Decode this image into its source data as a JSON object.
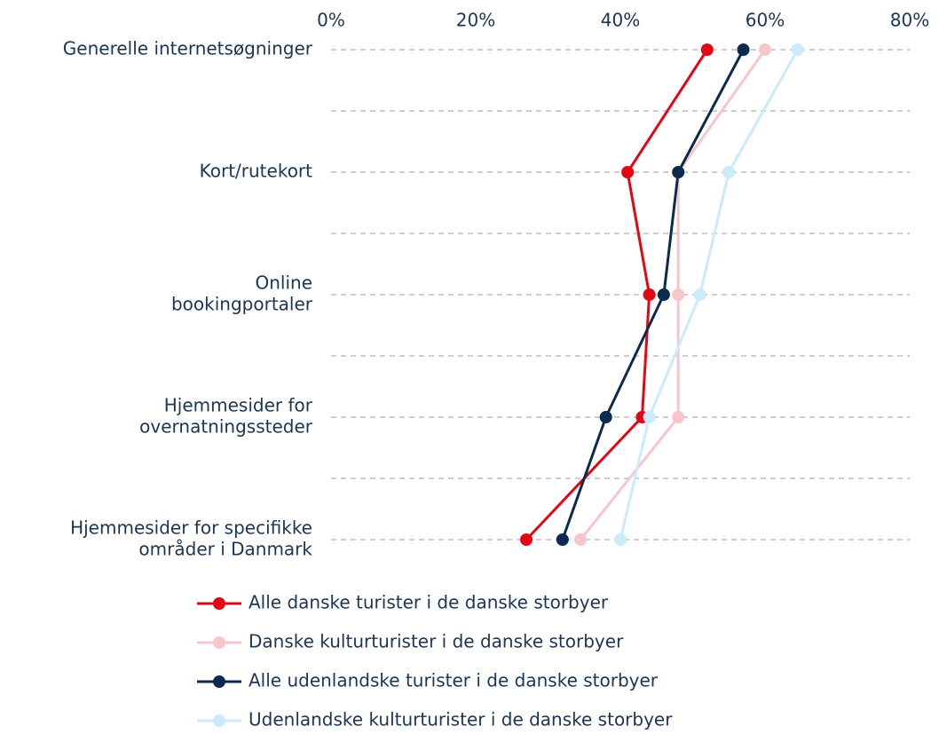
{
  "chart_data": {
    "type": "line",
    "orientation": "horizontal",
    "categories": [
      [
        "Generelle internetsøgninger"
      ],
      [
        "Kort/rutekort"
      ],
      [
        "Online",
        "bookingportaler"
      ],
      [
        "Hjemmesider for",
        "overnatningssteder"
      ],
      [
        "Hjemmesider for specifikke",
        "områder i Danmark"
      ]
    ],
    "series": [
      {
        "name": "Alle danske turister i de danske storbyer",
        "color": "#e30613",
        "values": [
          52,
          41,
          44,
          43,
          27
        ]
      },
      {
        "name": "Danske kulturturister i de danske storbyer",
        "color": "#f7c5cc",
        "values": [
          60,
          48,
          48,
          48,
          34.5
        ]
      },
      {
        "name": "Alle udenlandske turister i de danske storbyer",
        "color": "#0c2a4d",
        "values": [
          57,
          48,
          46,
          38,
          32
        ]
      },
      {
        "name": "Udenlandske kulturturister i de danske storbyer",
        "color": "#c9ebfb",
        "values": [
          64.5,
          55,
          51,
          44,
          40
        ]
      }
    ],
    "xlim": [
      0,
      80
    ],
    "xticks": [
      {
        "value": 0,
        "label": "0%"
      },
      {
        "value": 20,
        "label": "20%"
      },
      {
        "value": 40,
        "label": "40%"
      },
      {
        "value": 60,
        "label": "60%"
      },
      {
        "value": 80,
        "label": "80%"
      }
    ],
    "grid": true,
    "legend": "bottom"
  }
}
